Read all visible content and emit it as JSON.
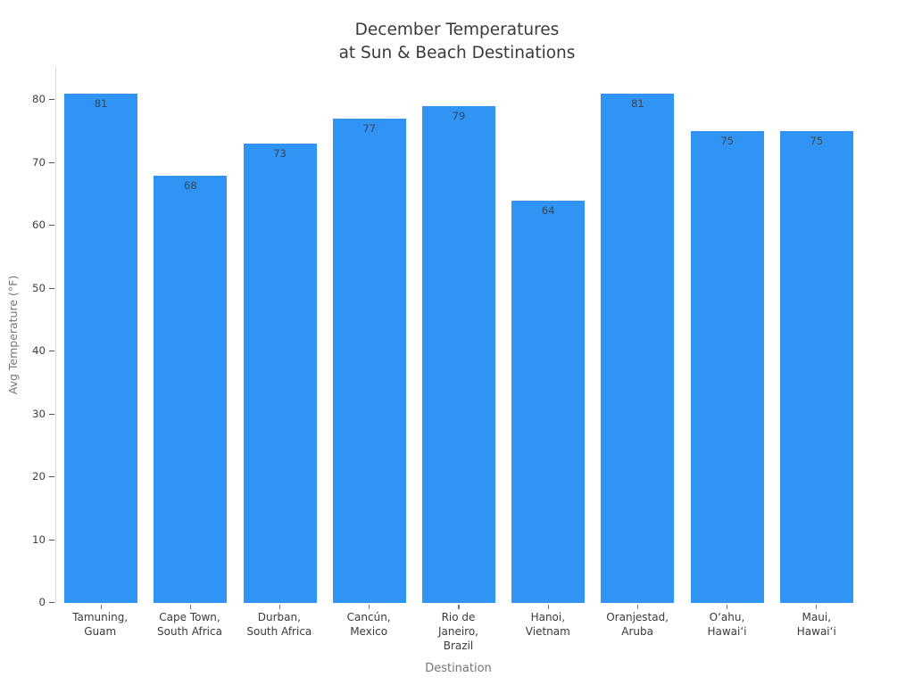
{
  "chart_data": {
    "type": "bar",
    "title": "December Temperatures\nat Sun & Beach Destinations",
    "xlabel": "Destination",
    "ylabel": "Avg Temperature (°F)",
    "categories": [
      "Tamuning,\nGuam",
      "Cape Town,\nSouth Africa",
      "Durban,\nSouth Africa",
      "Cancún,\nMexico",
      "Rio de\nJaneiro,\nBrazil",
      "Hanoi,\nVietnam",
      "Oranjestad,\nAruba",
      "Oʻahu,\nHawaiʻi",
      "Maui,\nHawaiʻi"
    ],
    "values": [
      81,
      68,
      73,
      77,
      79,
      64,
      81,
      75,
      75
    ],
    "yticks": [
      0,
      10,
      20,
      30,
      40,
      50,
      60,
      70,
      80
    ],
    "ylim": [
      0,
      85.25
    ],
    "grid": false,
    "legend": null,
    "bar_color": "#2f94f4",
    "value_label_color": "#3a4654",
    "title_color": "#3a3a3a",
    "axis_label_color": "#757575",
    "tick_label_color": "#3d3d3d",
    "spine_color": "#dcdcdc",
    "background_color": "#ffffff"
  }
}
